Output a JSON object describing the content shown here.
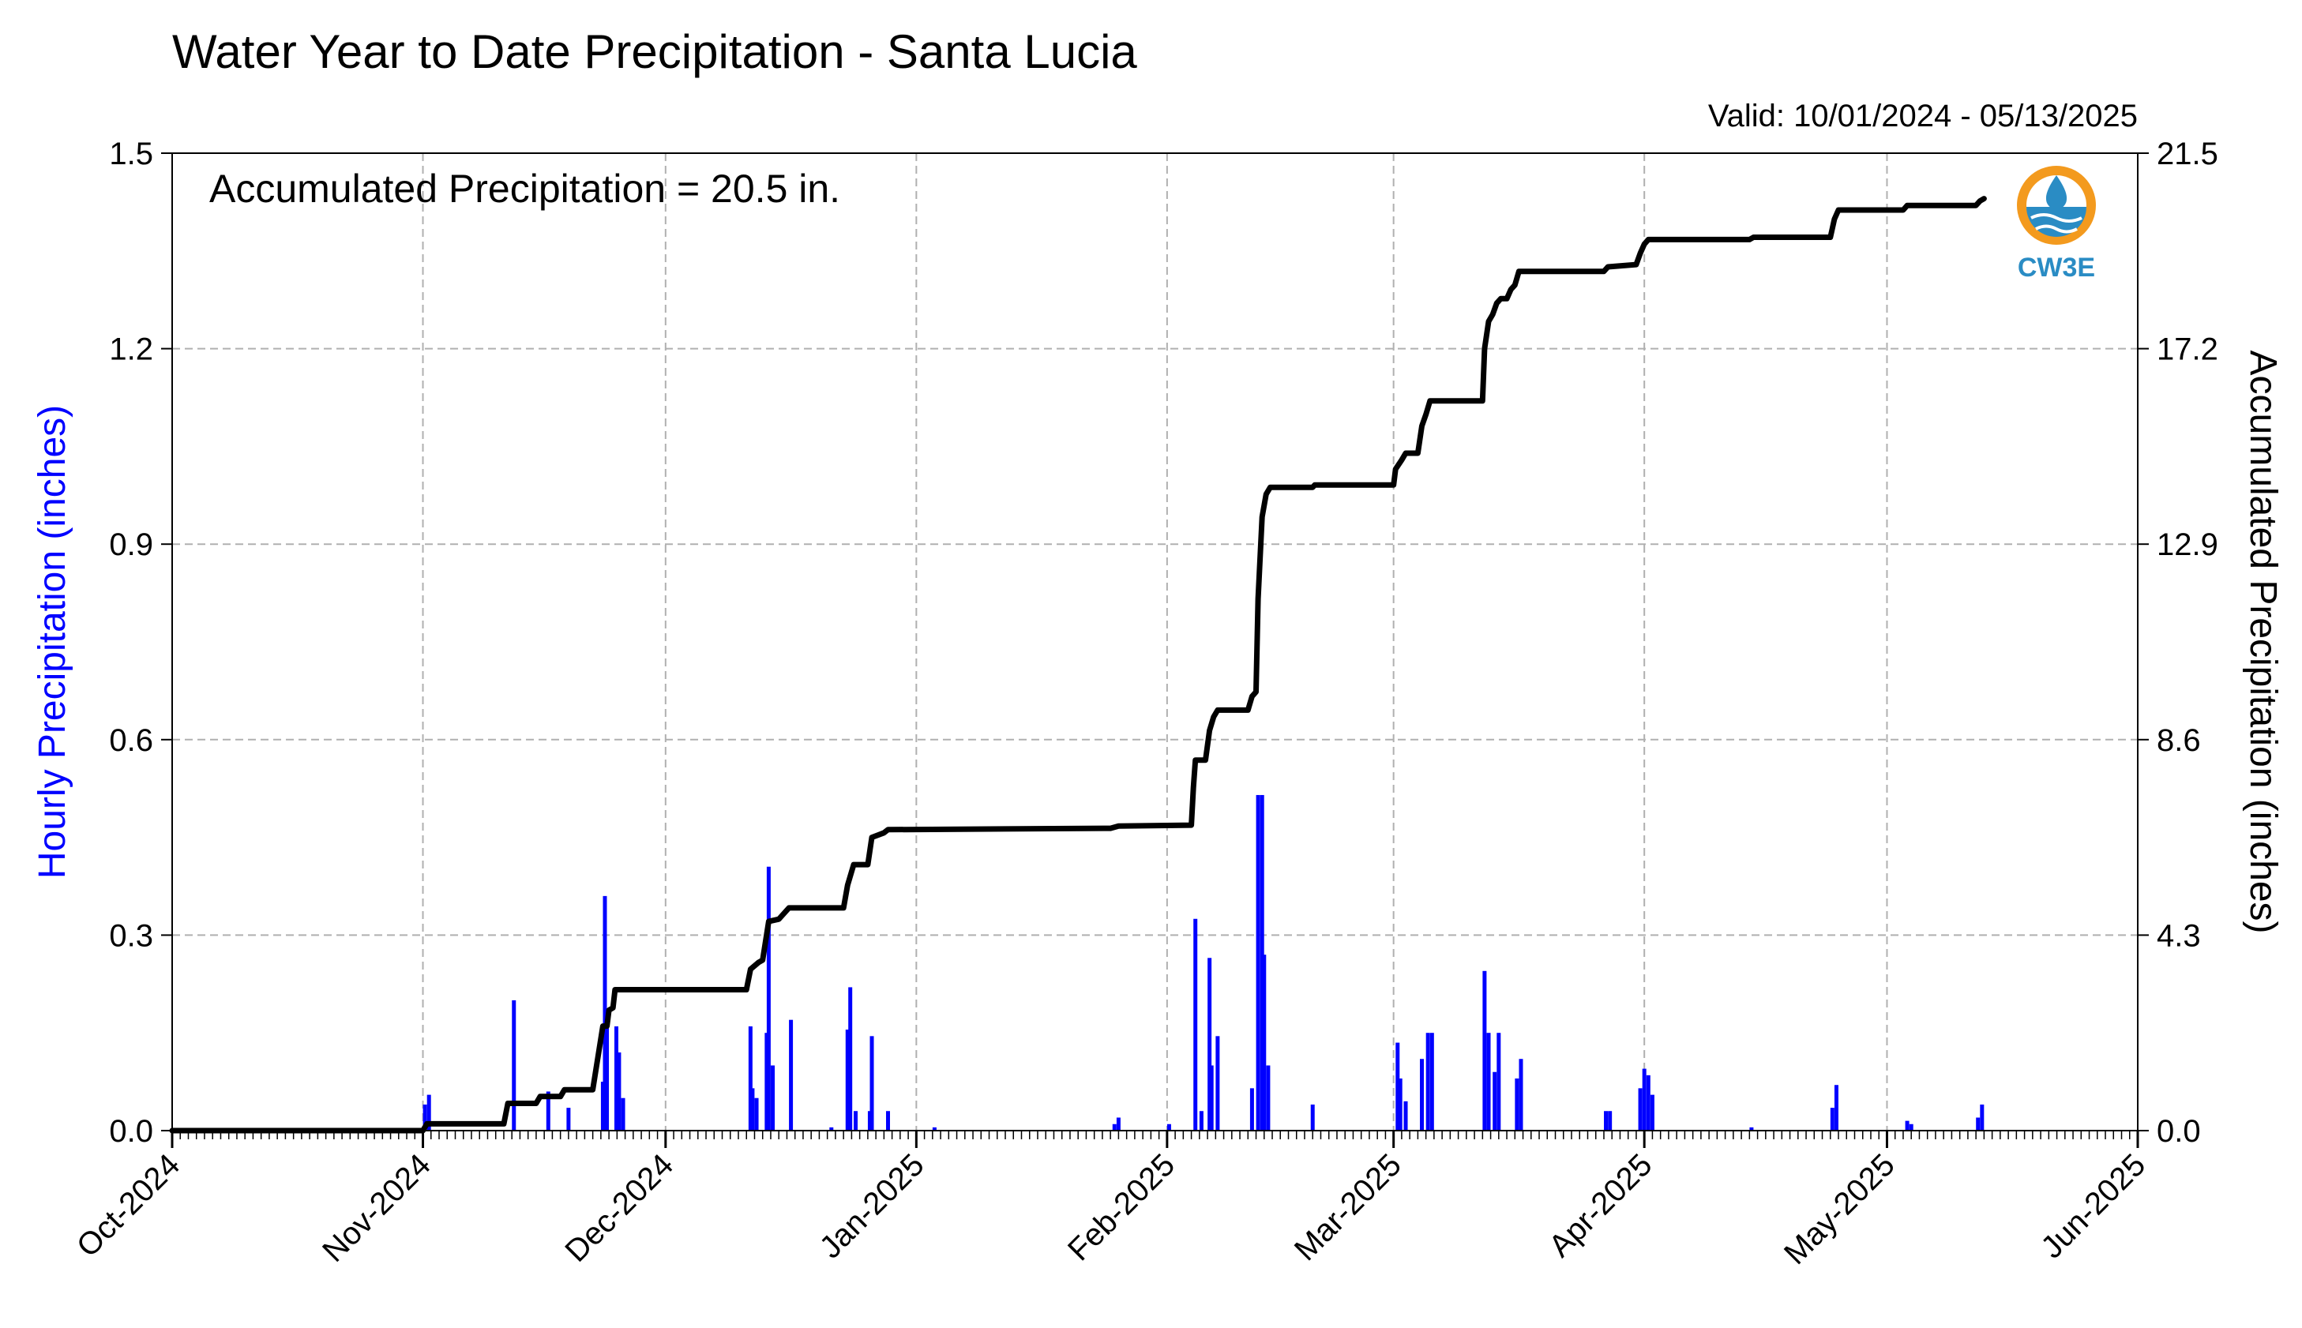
{
  "chart_data": {
    "type": "bar+line",
    "title": "Water Year to Date Precipitation - Santa Lucia",
    "valid_label": "Valid: 10/01/2024 - 05/13/2025",
    "annotation": "Accumulated Precipitation = 20.5 in.",
    "logo_text": "CW3E",
    "left_ylabel": "Hourly Precipitation (inches)",
    "right_ylabel": "Accumulated Precipitation (inches)",
    "x_range": [
      "2024-10-01",
      "2025-06-01"
    ],
    "x_ticks": [
      {
        "date": "2024-10-01",
        "label": "Oct-2024"
      },
      {
        "date": "2024-11-01",
        "label": "Nov-2024"
      },
      {
        "date": "2024-12-01",
        "label": "Dec-2024"
      },
      {
        "date": "2025-01-01",
        "label": "Jan-2025"
      },
      {
        "date": "2025-02-01",
        "label": "Feb-2025"
      },
      {
        "date": "2025-03-01",
        "label": "Mar-2025"
      },
      {
        "date": "2025-04-01",
        "label": "Apr-2025"
      },
      {
        "date": "2025-05-01",
        "label": "May-2025"
      },
      {
        "date": "2025-06-01",
        "label": "Jun-2025"
      }
    ],
    "left_ylim": [
      0,
      1.5
    ],
    "left_yticks": [
      "0.0",
      "0.3",
      "0.6",
      "0.9",
      "1.2",
      "1.5"
    ],
    "right_ylim": [
      0,
      21.5
    ],
    "right_yticks": [
      "0.0",
      "4.3",
      "8.6",
      "12.9",
      "17.2",
      "21.5"
    ],
    "grid": true,
    "colors": {
      "hourly": "#0000ff",
      "accumulated": "#000000",
      "grid": "#b0b0b0",
      "left_label": "#0000ff",
      "logo_orange": "#f39a1e",
      "logo_blue": "#2a8cc4"
    },
    "series": [
      {
        "name": "Hourly Precipitation",
        "kind": "bar",
        "axis": "left",
        "points": [
          [
            "2024-11-01T06:00",
            0.04
          ],
          [
            "2024-11-01T18:00",
            0.055
          ],
          [
            "2024-11-12T06:00",
            0.2
          ],
          [
            "2024-11-16T12:00",
            0.06
          ],
          [
            "2024-11-19T00:00",
            0.035
          ],
          [
            "2024-11-23T06:00",
            0.075
          ],
          [
            "2024-11-23T12:00",
            0.36
          ],
          [
            "2024-11-23T18:00",
            0.18
          ],
          [
            "2024-11-24T22:00",
            0.16
          ],
          [
            "2024-11-25T06:00",
            0.12
          ],
          [
            "2024-11-25T18:00",
            0.05
          ],
          [
            "2024-12-11T12:00",
            0.16
          ],
          [
            "2024-12-11T18:00",
            0.065
          ],
          [
            "2024-12-12T06:00",
            0.05
          ],
          [
            "2024-12-13T12:00",
            0.15
          ],
          [
            "2024-12-13T18:00",
            0.405
          ],
          [
            "2024-12-14T06:00",
            0.1
          ],
          [
            "2024-12-16T12:00",
            0.17
          ],
          [
            "2024-12-21T12:00",
            0.005
          ],
          [
            "2024-12-23T12:00",
            0.155
          ],
          [
            "2024-12-23T20:00",
            0.22
          ],
          [
            "2024-12-24T12:00",
            0.03
          ],
          [
            "2024-12-26T06:00",
            0.03
          ],
          [
            "2024-12-26T12:00",
            0.145
          ],
          [
            "2024-12-28T12:00",
            0.03
          ],
          [
            "2025-01-03T06:00",
            0.005
          ],
          [
            "2025-01-25T12:00",
            0.01
          ],
          [
            "2025-01-26T00:00",
            0.02
          ],
          [
            "2025-02-01T06:00",
            0.01
          ],
          [
            "2025-02-04T12:00",
            0.325
          ],
          [
            "2025-02-05T06:00",
            0.03
          ],
          [
            "2025-02-06T06:00",
            0.265
          ],
          [
            "2025-02-06T12:00",
            0.1
          ],
          [
            "2025-02-07T06:00",
            0.145
          ],
          [
            "2025-02-11T12:00",
            0.065
          ],
          [
            "2025-02-12T06:00",
            0.515
          ],
          [
            "2025-02-12T18:00",
            0.515
          ],
          [
            "2025-02-13T00:00",
            0.27
          ],
          [
            "2025-02-13T12:00",
            0.1
          ],
          [
            "2025-02-19T00:00",
            0.04
          ],
          [
            "2025-03-01T12:00",
            0.135
          ],
          [
            "2025-03-01T20:00",
            0.08
          ],
          [
            "2025-03-02T12:00",
            0.045
          ],
          [
            "2025-03-04T12:00",
            0.11
          ],
          [
            "2025-03-05T06:00",
            0.15
          ],
          [
            "2025-03-05T18:00",
            0.15
          ],
          [
            "2025-03-12T06:00",
            0.245
          ],
          [
            "2025-03-12T18:00",
            0.15
          ],
          [
            "2025-03-13T12:00",
            0.09
          ],
          [
            "2025-03-14T00:00",
            0.15
          ],
          [
            "2025-03-16T06:00",
            0.08
          ],
          [
            "2025-03-16T18:00",
            0.11
          ],
          [
            "2025-03-27T06:00",
            0.03
          ],
          [
            "2025-03-27T18:00",
            0.03
          ],
          [
            "2025-03-31T12:00",
            0.065
          ],
          [
            "2025-04-01T00:00",
            0.095
          ],
          [
            "2025-04-01T12:00",
            0.085
          ],
          [
            "2025-04-02T00:00",
            0.055
          ],
          [
            "2025-04-14T06:00",
            0.005
          ],
          [
            "2025-04-24T06:00",
            0.035
          ],
          [
            "2025-04-24T18:00",
            0.07
          ],
          [
            "2025-05-03T12:00",
            0.015
          ],
          [
            "2025-05-04T00:00",
            0.01
          ],
          [
            "2025-05-12T06:00",
            0.02
          ],
          [
            "2025-05-12T18:00",
            0.04
          ]
        ]
      },
      {
        "name": "Accumulated Precipitation",
        "kind": "step-line",
        "axis": "right",
        "points": [
          [
            "2024-10-01",
            0.0
          ],
          [
            "2024-11-01",
            0.0
          ],
          [
            "2024-11-01T12:00",
            0.15
          ],
          [
            "2024-11-11",
            0.15
          ],
          [
            "2024-11-11T12:00",
            0.6
          ],
          [
            "2024-11-15",
            0.6
          ],
          [
            "2024-11-15T12:00",
            0.75
          ],
          [
            "2024-11-18",
            0.75
          ],
          [
            "2024-11-18T12:00",
            0.9
          ],
          [
            "2024-11-22",
            0.9
          ],
          [
            "2024-11-23T06:00",
            2.3
          ],
          [
            "2024-11-23T18:00",
            2.3
          ],
          [
            "2024-11-24",
            2.65
          ],
          [
            "2024-11-24T12:00",
            2.7
          ],
          [
            "2024-11-24T18:00",
            3.1
          ],
          [
            "2024-11-26",
            3.1
          ],
          [
            "2024-12-11",
            3.1
          ],
          [
            "2024-12-11T12:00",
            3.55
          ],
          [
            "2024-12-12T12:00",
            3.7
          ],
          [
            "2024-12-13",
            3.75
          ],
          [
            "2024-12-13T18:00",
            4.6
          ],
          [
            "2024-12-15",
            4.65
          ],
          [
            "2024-12-16T06:00",
            4.9
          ],
          [
            "2024-12-23",
            4.9
          ],
          [
            "2024-12-23T12:00",
            5.4
          ],
          [
            "2024-12-24T06:00",
            5.85
          ],
          [
            "2024-12-26",
            5.85
          ],
          [
            "2024-12-26T12:00",
            6.45
          ],
          [
            "2024-12-28",
            6.55
          ],
          [
            "2024-12-28T12:00",
            6.62
          ],
          [
            "2025-01-25",
            6.65
          ],
          [
            "2025-01-26",
            6.7
          ],
          [
            "2025-02-04",
            6.72
          ],
          [
            "2025-02-04T06:00",
            7.55
          ],
          [
            "2025-02-04T12:00",
            8.15
          ],
          [
            "2025-02-05T18:00",
            8.15
          ],
          [
            "2025-02-06T06:00",
            8.8
          ],
          [
            "2025-02-06T18:00",
            9.1
          ],
          [
            "2025-02-07T06:00",
            9.25
          ],
          [
            "2025-02-11",
            9.25
          ],
          [
            "2025-02-11T12:00",
            9.55
          ],
          [
            "2025-02-12",
            9.65
          ],
          [
            "2025-02-12T06:00",
            11.7
          ],
          [
            "2025-02-12T18:00",
            13.5
          ],
          [
            "2025-02-13T06:00",
            14.0
          ],
          [
            "2025-02-13T18:00",
            14.15
          ],
          [
            "2025-02-19",
            14.15
          ],
          [
            "2025-02-19T06:00",
            14.2
          ],
          [
            "2025-03-01",
            14.2
          ],
          [
            "2025-03-01T06:00",
            14.55
          ],
          [
            "2025-03-02",
            14.75
          ],
          [
            "2025-03-02T12:00",
            14.9
          ],
          [
            "2025-03-04",
            14.9
          ],
          [
            "2025-03-04T12:00",
            15.5
          ],
          [
            "2025-03-05",
            15.75
          ],
          [
            "2025-03-05T12:00",
            16.05
          ],
          [
            "2025-03-12",
            16.05
          ],
          [
            "2025-03-12T06:00",
            17.2
          ],
          [
            "2025-03-12T18:00",
            17.8
          ],
          [
            "2025-03-13T06:00",
            17.95
          ],
          [
            "2025-03-13T18:00",
            18.2
          ],
          [
            "2025-03-14T06:00",
            18.3
          ],
          [
            "2025-03-15",
            18.3
          ],
          [
            "2025-03-15T12:00",
            18.5
          ],
          [
            "2025-03-16",
            18.6
          ],
          [
            "2025-03-16T12:00",
            18.9
          ],
          [
            "2025-03-27",
            18.9
          ],
          [
            "2025-03-27T12:00",
            19.0
          ],
          [
            "2025-03-31",
            19.05
          ],
          [
            "2025-03-31T12:00",
            19.3
          ],
          [
            "2025-04-01",
            19.5
          ],
          [
            "2025-04-01T12:00",
            19.6
          ],
          [
            "2025-04-14",
            19.6
          ],
          [
            "2025-04-14T12:00",
            19.65
          ],
          [
            "2025-04-24",
            19.65
          ],
          [
            "2025-04-24T12:00",
            20.05
          ],
          [
            "2025-04-25",
            20.25
          ],
          [
            "2025-05-03",
            20.25
          ],
          [
            "2025-05-03T12:00",
            20.35
          ],
          [
            "2025-05-12",
            20.35
          ],
          [
            "2025-05-12T12:00",
            20.45
          ],
          [
            "2025-05-13",
            20.5
          ]
        ]
      }
    ]
  }
}
